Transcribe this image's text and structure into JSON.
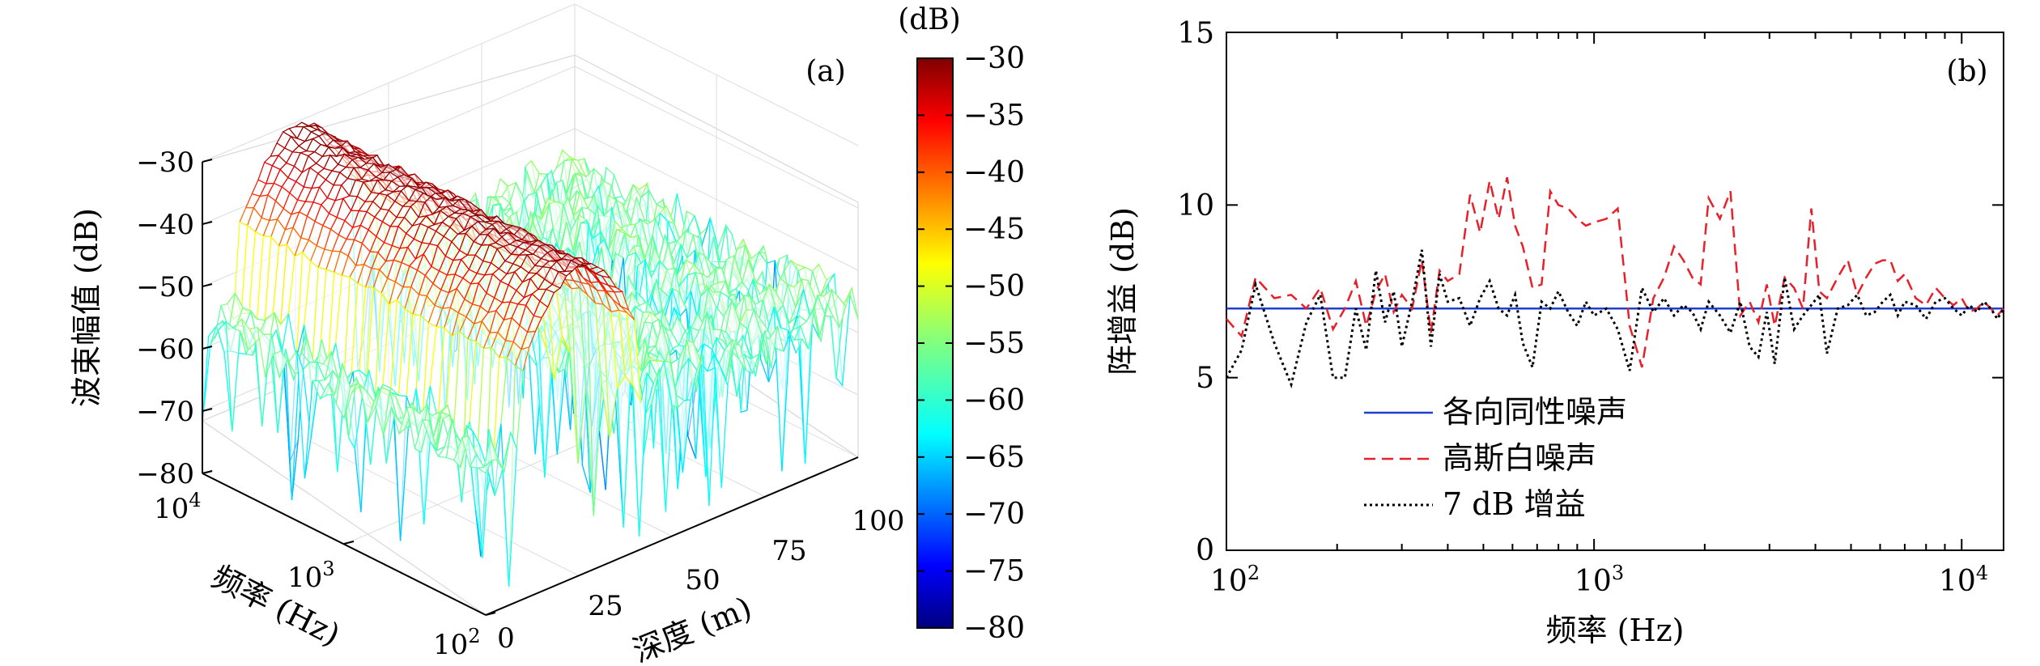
{
  "panel_a": {
    "label": "(a)",
    "zlabel": "波束幅值 (dB)",
    "xlabel": "深度 (m)",
    "ylabel": "频率 (Hz)",
    "z_ticks": [
      "−30",
      "−40",
      "−50",
      "−60",
      "−70",
      "−80"
    ],
    "depth_ticks": [
      "0",
      "25",
      "50",
      "75",
      "100"
    ],
    "freq_tick_bases": [
      "10",
      "10",
      "10"
    ],
    "freq_tick_exps": [
      "2",
      "3",
      "4"
    ],
    "colorbar": {
      "unit": "(dB)",
      "ticks": [
        "−30",
        "−35",
        "−40",
        "−45",
        "−50",
        "−55",
        "−60",
        "−65",
        "−70",
        "−75",
        "−80"
      ],
      "colormap": "jet"
    }
  },
  "panel_b": {
    "label": "(b)",
    "ylabel": "阵增益 (dB)",
    "xlabel": "频率 (Hz)",
    "y_ticks": [
      "0",
      "5",
      "10",
      "15"
    ],
    "x_tick_bases": [
      "10",
      "10",
      "10"
    ],
    "x_tick_exps": [
      "2",
      "3",
      "4"
    ],
    "legend": [
      "各向同性噪声",
      "高斯白噪声",
      "7 dB 增益"
    ]
  },
  "chart_data": [
    {
      "type": "surface",
      "title": "",
      "xlabel": "深度 (m)",
      "ylabel": "频率 (Hz)",
      "zlabel": "波束幅值 (dB)",
      "xlim": [
        0,
        100
      ],
      "ylim": [
        100,
        10000
      ],
      "yscale": "log",
      "zlim": [
        -80,
        -30
      ],
      "clim": [
        -80,
        -30
      ],
      "colormap": "jet",
      "peak_depth": [
        10,
        40
      ],
      "peak_value": -30,
      "background_level": [
        -50,
        -60
      ],
      "noise_floor_min": -80
    },
    {
      "type": "line",
      "title": "",
      "xlabel": "频率 (Hz)",
      "ylabel": "阵增益 (dB)",
      "xscale": "log",
      "xlim": [
        100,
        13000
      ],
      "ylim": [
        0,
        15
      ],
      "grid": false,
      "legend_position": "bottom-left",
      "series": [
        {
          "name": "各向同性噪声",
          "color": "#1f3fd0",
          "style": "solid",
          "x": [
            100,
            13000
          ],
          "values": [
            7.0,
            7.0
          ]
        },
        {
          "name": "高斯白噪声",
          "color": "#e8202a",
          "style": "dashed",
          "x": [
            100,
            110,
            120,
            135,
            150,
            165,
            180,
            195,
            210,
            225,
            240,
            255,
            270,
            285,
            300,
            320,
            340,
            360,
            380,
            400,
            430,
            460,
            490,
            520,
            550,
            580,
            610,
            640,
            680,
            720,
            760,
            800,
            850,
            900,
            950,
            1000,
            1080,
            1160,
            1250,
            1350,
            1450,
            1550,
            1650,
            1750,
            1850,
            1950,
            2050,
            2200,
            2350,
            2500,
            2650,
            2800,
            2950,
            3100,
            3300,
            3500,
            3700,
            3900,
            4100,
            4300,
            4600,
            4900,
            5200,
            5500,
            5800,
            6100,
            6400,
            6700,
            7000,
            7500,
            8000,
            8500,
            9000,
            9500,
            10000,
            10500,
            11000,
            11500,
            12000,
            12500,
            13000
          ],
          "values": [
            6.7,
            6.2,
            7.9,
            7.3,
            7.4,
            7.0,
            7.6,
            6.4,
            7.0,
            7.8,
            6.5,
            7.5,
            8.0,
            6.9,
            7.4,
            7.0,
            8.4,
            6.3,
            8.1,
            7.8,
            8.0,
            10.3,
            9.2,
            10.7,
            9.6,
            10.8,
            9.4,
            8.8,
            7.6,
            7.7,
            10.4,
            10.0,
            9.9,
            9.6,
            9.4,
            9.5,
            9.6,
            9.9,
            6.5,
            5.3,
            7.3,
            7.9,
            8.8,
            8.4,
            7.9,
            7.7,
            10.2,
            9.6,
            10.4,
            6.8,
            7.2,
            6.6,
            7.7,
            6.5,
            7.9,
            7.6,
            7.0,
            9.9,
            7.5,
            7.3,
            7.9,
            8.4,
            7.4,
            7.9,
            8.3,
            8.4,
            8.4,
            7.8,
            8.0,
            7.3,
            7.1,
            7.6,
            7.3,
            7.1,
            7.3,
            6.9,
            7.0,
            7.2,
            7.0,
            6.8,
            7.0
          ]
        },
        {
          "name": "7 dB 增益",
          "color": "#000000",
          "style": "dotted",
          "x": [
            100,
            110,
            120,
            135,
            150,
            165,
            180,
            195,
            210,
            225,
            240,
            255,
            270,
            285,
            300,
            320,
            340,
            360,
            380,
            400,
            430,
            460,
            490,
            520,
            550,
            580,
            610,
            640,
            680,
            720,
            760,
            800,
            850,
            900,
            950,
            1000,
            1080,
            1160,
            1250,
            1350,
            1450,
            1550,
            1650,
            1750,
            1850,
            1950,
            2050,
            2200,
            2350,
            2500,
            2650,
            2800,
            2950,
            3100,
            3300,
            3500,
            3700,
            3900,
            4100,
            4300,
            4600,
            4900,
            5200,
            5500,
            5800,
            6100,
            6400,
            6700,
            7000,
            7500,
            8000,
            8500,
            9000,
            9500,
            10000,
            10500,
            11000,
            11500,
            12000,
            12500,
            13000
          ],
          "values": [
            5.0,
            5.8,
            7.7,
            6.0,
            4.8,
            6.6,
            7.4,
            5.0,
            5.0,
            7.0,
            5.8,
            8.1,
            6.6,
            7.5,
            5.9,
            7.2,
            8.7,
            5.9,
            8.0,
            7.2,
            7.3,
            6.5,
            7.3,
            7.8,
            7.0,
            6.8,
            7.4,
            6.0,
            5.3,
            7.2,
            7.0,
            7.5,
            6.9,
            6.5,
            7.2,
            6.8,
            7.0,
            6.4,
            5.2,
            7.6,
            6.9,
            7.3,
            6.8,
            7.1,
            6.9,
            6.4,
            7.2,
            6.8,
            6.3,
            7.2,
            5.9,
            5.6,
            6.9,
            5.4,
            7.9,
            6.4,
            6.8,
            7.1,
            7.4,
            5.7,
            7.0,
            7.1,
            7.4,
            6.8,
            6.9,
            7.2,
            7.4,
            6.8,
            7.2,
            7.1,
            6.7,
            7.2,
            7.3,
            7.0,
            6.8,
            7.1,
            6.9,
            7.2,
            7.0,
            6.7,
            7.0
          ]
        }
      ]
    }
  ]
}
